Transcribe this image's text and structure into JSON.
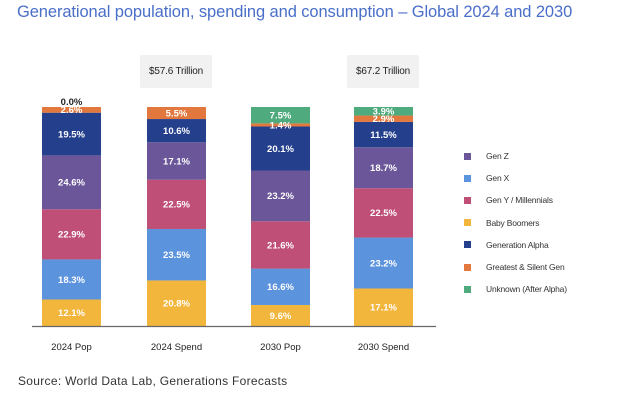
{
  "chart_data": {
    "type": "bar",
    "stacked": true,
    "title": "Generational population, spending and consumption – Global 2024 and 2030",
    "categories": [
      "2024 Pop",
      "2024 Spend",
      "2030 Pop",
      "2030 Spend"
    ],
    "totals": [
      "",
      "$57.6 Trillion",
      "",
      "$67.2 Trillion"
    ],
    "ylim": [
      0,
      100
    ],
    "unit": "%",
    "legend_position": "right",
    "stack_order_bottom_to_top": [
      "Baby Boomers",
      "Gen X",
      "Gen Y / Millennials",
      "Gen Z",
      "Generation Alpha",
      "Greatest & Silent Gen",
      "Unknown (After Alpha)"
    ],
    "series": [
      {
        "name": "Baby Boomers",
        "color": "#f2b63c",
        "values": [
          12.1,
          20.8,
          9.6,
          17.1
        ]
      },
      {
        "name": "Gen X",
        "color": "#5b93dd",
        "values": [
          18.3,
          23.5,
          16.6,
          23.2
        ]
      },
      {
        "name": "Gen Y / Millennials",
        "color": "#bf4f77",
        "values": [
          22.9,
          22.5,
          21.6,
          22.5
        ]
      },
      {
        "name": "Gen Z",
        "color": "#6a5699",
        "values": [
          24.6,
          17.1,
          23.2,
          18.7
        ]
      },
      {
        "name": "Generation Alpha",
        "color": "#24408c",
        "values": [
          19.5,
          10.6,
          20.1,
          11.5
        ]
      },
      {
        "name": "Greatest & Silent Gen",
        "color": "#e3783e",
        "values": [
          2.6,
          5.5,
          1.4,
          2.9
        ]
      },
      {
        "name": "Unknown (After Alpha)",
        "color": "#4fab7d",
        "values": [
          0.0,
          0.0,
          7.5,
          3.9
        ]
      }
    ],
    "legend_order": [
      "Gen Z",
      "Gen X",
      "Gen Y / Millennials",
      "Baby Boomers",
      "Generation Alpha",
      "Greatest & Silent Gen",
      "Unknown (After Alpha)"
    ],
    "extra_labels": [
      {
        "category": "2024 Pop",
        "series": "Unknown (After Alpha)",
        "text": "0.0%"
      }
    ]
  },
  "source": "Source: World Data Lab, Generations Forecasts",
  "colors": {
    "title": "#4a6fc9",
    "axis": "#666666",
    "total_box_bg": "#f1f1f1"
  }
}
